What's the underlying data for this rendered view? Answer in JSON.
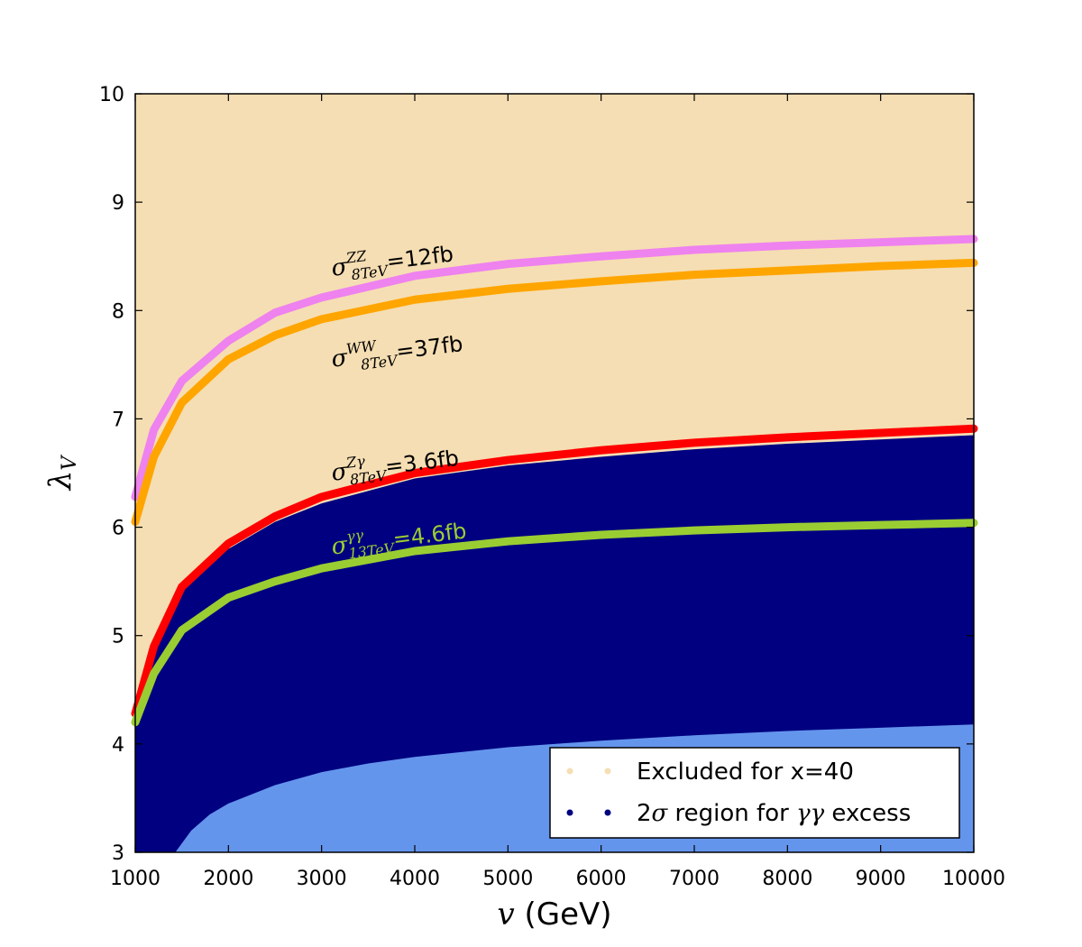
{
  "chart_data": {
    "type": "area",
    "xlabel_var": "v",
    "xlabel_unit": "(GeV)",
    "ylabel_main": "λ",
    "ylabel_sub": "V",
    "xlim": [
      1000,
      10000
    ],
    "ylim": [
      3,
      10
    ],
    "x_ticks": [
      1000,
      2000,
      3000,
      4000,
      5000,
      6000,
      7000,
      8000,
      9000,
      10000
    ],
    "y_ticks": [
      3,
      4,
      5,
      6,
      7,
      8,
      9,
      10
    ],
    "colors": {
      "excluded": "#f5deb3",
      "region_2sigma": "#000080",
      "below": "#6495ed",
      "zz": "#ee82ee",
      "ww": "#ffa500",
      "zgamma": "#ff0000",
      "gammagamma": "#9acd32"
    },
    "curves": [
      {
        "name": "zz",
        "sigma": "σ",
        "sup": "ZZ",
        "sub": "8TeV",
        "value": "=12fb",
        "label_color": "#000000",
        "label_anchor": [
          3000,
          8.32
        ],
        "x": [
          1000,
          1200,
          1500,
          2000,
          2500,
          3000,
          4000,
          5000,
          6000,
          7000,
          8000,
          9000,
          10000
        ],
        "y": [
          6.28,
          6.9,
          7.35,
          7.72,
          7.98,
          8.12,
          8.32,
          8.43,
          8.5,
          8.56,
          8.6,
          8.63,
          8.66
        ]
      },
      {
        "name": "ww",
        "sigma": "σ",
        "sup": "WW",
        "sub": "8TeV",
        "value": "=37fb",
        "label_color": "#000000",
        "label_anchor": [
          3000,
          7.48
        ],
        "x": [
          1000,
          1200,
          1500,
          2000,
          2500,
          3000,
          4000,
          5000,
          6000,
          7000,
          8000,
          9000,
          10000
        ],
        "y": [
          6.05,
          6.65,
          7.15,
          7.55,
          7.77,
          7.92,
          8.1,
          8.2,
          8.27,
          8.33,
          8.37,
          8.41,
          8.44
        ]
      },
      {
        "name": "zgamma",
        "sigma": "σ",
        "sup": "Zγ",
        "sub": "8TeV",
        "value": "=3.6fb",
        "label_color": "#000000",
        "label_anchor": [
          3000,
          6.43
        ],
        "x": [
          1000,
          1200,
          1500,
          2000,
          2500,
          3000,
          4000,
          5000,
          6000,
          7000,
          8000,
          9000,
          10000
        ],
        "y": [
          4.28,
          4.9,
          5.45,
          5.85,
          6.1,
          6.28,
          6.5,
          6.62,
          6.71,
          6.78,
          6.83,
          6.87,
          6.91
        ]
      },
      {
        "name": "gammagamma",
        "sigma": "σ",
        "sup": "γγ",
        "sub": "13TeV",
        "value": "=4.6fb",
        "label_color": "#9acd32",
        "label_anchor": [
          3000,
          5.75
        ],
        "x": [
          1000,
          1200,
          1500,
          2000,
          2500,
          3000,
          4000,
          5000,
          6000,
          7000,
          8000,
          9000,
          10000
        ],
        "y": [
          4.2,
          4.65,
          5.05,
          5.35,
          5.5,
          5.62,
          5.78,
          5.87,
          5.93,
          5.97,
          6.0,
          6.02,
          6.04
        ]
      }
    ],
    "region_2sigma_top": {
      "x": [
        1000,
        1200,
        1500,
        2000,
        2500,
        3000,
        4000,
        5000,
        6000,
        7000,
        8000,
        9000,
        10000
      ],
      "y": [
        4.25,
        4.85,
        5.4,
        5.8,
        6.05,
        6.22,
        6.45,
        6.57,
        6.65,
        6.72,
        6.77,
        6.81,
        6.85
      ]
    },
    "lower_boundary": {
      "x": [
        1430,
        1600,
        1800,
        2000,
        2500,
        3000,
        3500,
        4000,
        5000,
        6000,
        7000,
        8000,
        9000,
        10000
      ],
      "y": [
        3.0,
        3.2,
        3.35,
        3.45,
        3.62,
        3.74,
        3.82,
        3.88,
        3.97,
        4.03,
        4.08,
        4.12,
        4.15,
        4.18
      ]
    },
    "legend": {
      "position": "lower-right",
      "entries": [
        {
          "label": "Excluded for x=40",
          "color": "#f5deb3"
        },
        {
          "label_prefix": "2",
          "label_sigma": "σ",
          "label_mid": " region for ",
          "label_gg": "γγ",
          "label_suffix": " excess",
          "color": "#000080"
        }
      ]
    }
  }
}
